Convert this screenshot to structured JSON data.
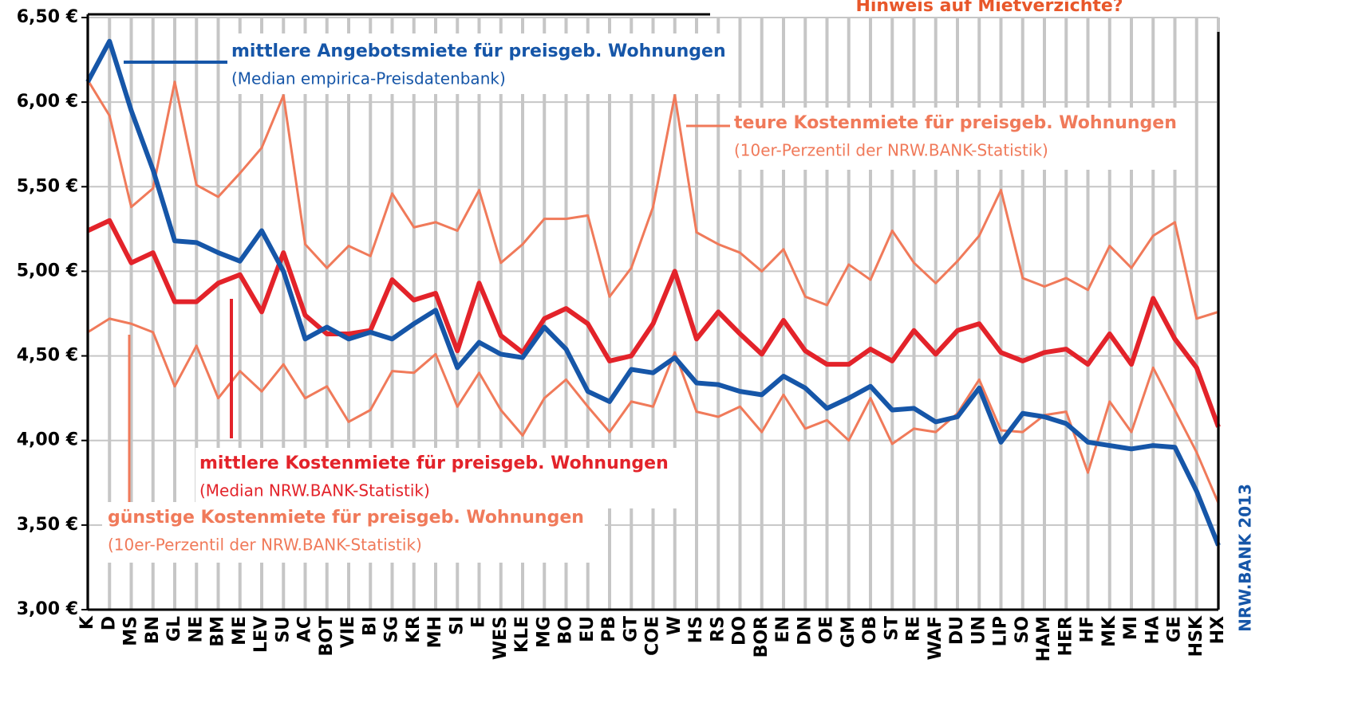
{
  "chart_data": {
    "type": "line",
    "title": "Hinweis auf Mietverzichte?",
    "source": "NRW.BANK 2013",
    "categories": [
      "K",
      "D",
      "MS",
      "BN",
      "GL",
      "NE",
      "BM",
      "ME",
      "LEV",
      "SU",
      "AC",
      "BOT",
      "VIE",
      "BI",
      "SG",
      "KR",
      "MH",
      "SI",
      "E",
      "WES",
      "KLE",
      "MG",
      "BO",
      "EU",
      "PB",
      "GT",
      "COE",
      "W",
      "HS",
      "RS",
      "DO",
      "BOR",
      "EN",
      "DN",
      "OE",
      "GM",
      "OB",
      "ST",
      "RE",
      "WAF",
      "DU",
      "UN",
      "LIP",
      "SO",
      "HAM",
      "HER",
      "HF",
      "MK",
      "MI",
      "HA",
      "GE",
      "HSK",
      "HX"
    ],
    "series": [
      {
        "name": "teure Kostenmiete für preisgeb. Wohnungen",
        "note": "(10er-Perzentil der NRW.BANK-Statistik)",
        "color": "#f07a5a",
        "values": [
          6.13,
          5.92,
          5.38,
          5.49,
          6.12,
          5.51,
          5.44,
          5.58,
          5.73,
          6.04,
          5.16,
          5.02,
          5.15,
          5.09,
          5.46,
          5.26,
          5.29,
          5.24,
          5.48,
          5.05,
          5.16,
          5.31,
          5.31,
          5.33,
          4.85,
          5.02,
          5.38,
          6.04,
          5.23,
          5.16,
          5.11,
          5.0,
          5.13,
          4.85,
          4.8,
          5.04,
          4.95,
          5.24,
          5.05,
          4.93,
          5.06,
          5.21,
          5.48,
          4.96,
          4.91,
          4.96,
          4.89,
          5.15,
          5.02,
          5.21,
          5.29,
          4.72,
          4.76
        ]
      },
      {
        "name": "günstige Kostenmiete für preisgeb. Wohnungen",
        "note": "(10er-Perzentil der NRW.BANK-Statistik)",
        "color": "#f07a5a",
        "values": [
          4.64,
          4.72,
          4.69,
          4.64,
          4.32,
          4.56,
          4.25,
          4.41,
          4.29,
          4.45,
          4.25,
          4.32,
          4.11,
          4.18,
          4.41,
          4.4,
          4.51,
          4.2,
          4.4,
          4.18,
          4.03,
          4.25,
          4.36,
          4.2,
          4.05,
          4.23,
          4.2,
          4.52,
          4.17,
          4.14,
          4.2,
          4.05,
          4.27,
          4.07,
          4.12,
          4.0,
          4.25,
          3.98,
          4.07,
          4.05,
          4.16,
          4.36,
          4.06,
          4.05,
          4.15,
          4.17,
          3.81,
          4.23,
          4.05,
          4.43,
          4.18,
          3.93,
          3.63
        ]
      },
      {
        "name": "mittlere Kostenmiete für preisgeb. Wohnungen",
        "note": "(Median NRW.BANK-Statistik)",
        "color": "#e3232a",
        "values": [
          5.24,
          5.3,
          5.05,
          5.11,
          4.82,
          4.82,
          4.93,
          4.98,
          4.76,
          5.11,
          4.74,
          4.63,
          4.63,
          4.65,
          4.95,
          4.83,
          4.87,
          4.53,
          4.93,
          4.62,
          4.52,
          4.72,
          4.78,
          4.69,
          4.47,
          4.5,
          4.69,
          5.0,
          4.6,
          4.76,
          4.63,
          4.51,
          4.71,
          4.53,
          4.45,
          4.45,
          4.54,
          4.47,
          4.65,
          4.51,
          4.65,
          4.69,
          4.52,
          4.47,
          4.52,
          4.54,
          4.45,
          4.63,
          4.45,
          4.84,
          4.6,
          4.43,
          4.08
        ]
      },
      {
        "name": "mittlere Angebotsmiete für preisgeb. Wohnungen",
        "note": "(Median empirica-Preisdatenbank)",
        "color": "#1656a8",
        "values": [
          6.12,
          6.36,
          5.95,
          5.6,
          5.18,
          5.17,
          5.11,
          5.06,
          5.24,
          5.0,
          4.6,
          4.67,
          4.6,
          4.64,
          4.6,
          4.69,
          4.77,
          4.43,
          4.58,
          4.51,
          4.49,
          4.67,
          4.54,
          4.29,
          4.23,
          4.42,
          4.4,
          4.49,
          4.34,
          4.33,
          4.29,
          4.27,
          4.38,
          4.31,
          4.19,
          4.25,
          4.32,
          4.18,
          4.19,
          4.11,
          4.14,
          4.31,
          3.99,
          4.16,
          4.14,
          4.1,
          3.99,
          3.97,
          3.95,
          3.97,
          3.96,
          3.7,
          3.38
        ]
      }
    ],
    "ylim": [
      3,
      6.5
    ],
    "yticks": [
      {
        "value": 3,
        "label": "3,00 €"
      },
      {
        "value": 3.5,
        "label": "3,50 €"
      },
      {
        "value": 4,
        "label": "4,00 €"
      },
      {
        "value": 4.5,
        "label": "4,50 €"
      },
      {
        "value": 5,
        "label": "5,00 €"
      },
      {
        "value": 5.5,
        "label": "5,50 €"
      },
      {
        "value": 6,
        "label": "6,00 €"
      },
      {
        "value": 6.5,
        "label": "6,50 €"
      }
    ],
    "grid": true
  }
}
